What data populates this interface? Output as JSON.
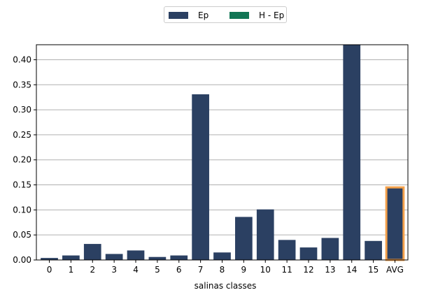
{
  "chart_data": {
    "type": "bar",
    "categories": [
      "0",
      "1",
      "2",
      "3",
      "4",
      "5",
      "6",
      "7",
      "8",
      "9",
      "10",
      "11",
      "12",
      "13",
      "14",
      "15",
      "AVG"
    ],
    "series": [
      {
        "name": "Ep",
        "color": "#2b4062",
        "values": [
          0.004,
          0.009,
          0.032,
          0.012,
          0.019,
          0.006,
          0.009,
          0.331,
          0.015,
          0.086,
          0.101,
          0.04,
          0.025,
          0.044,
          0.43,
          0.038,
          0.145
        ]
      },
      {
        "name": "H - Ep",
        "color": "#117554",
        "values": [
          0,
          0,
          0,
          0,
          0,
          0,
          0,
          0,
          0,
          0,
          0,
          0,
          0,
          0,
          0,
          0,
          0
        ]
      }
    ],
    "highlight": {
      "category": "AVG",
      "edge_color": "#f4a14b"
    },
    "xlabel": "salinas classes",
    "ylabel": "",
    "ylim": [
      0,
      0.43
    ],
    "yticks": [
      "0.00",
      "0.05",
      "0.10",
      "0.15",
      "0.20",
      "0.25",
      "0.30",
      "0.35",
      "0.40"
    ],
    "ytick_values": [
      0,
      0.05,
      0.1,
      0.15,
      0.2,
      0.25,
      0.3,
      0.35,
      0.4
    ],
    "grid": "y",
    "legend_position": "top-center"
  }
}
